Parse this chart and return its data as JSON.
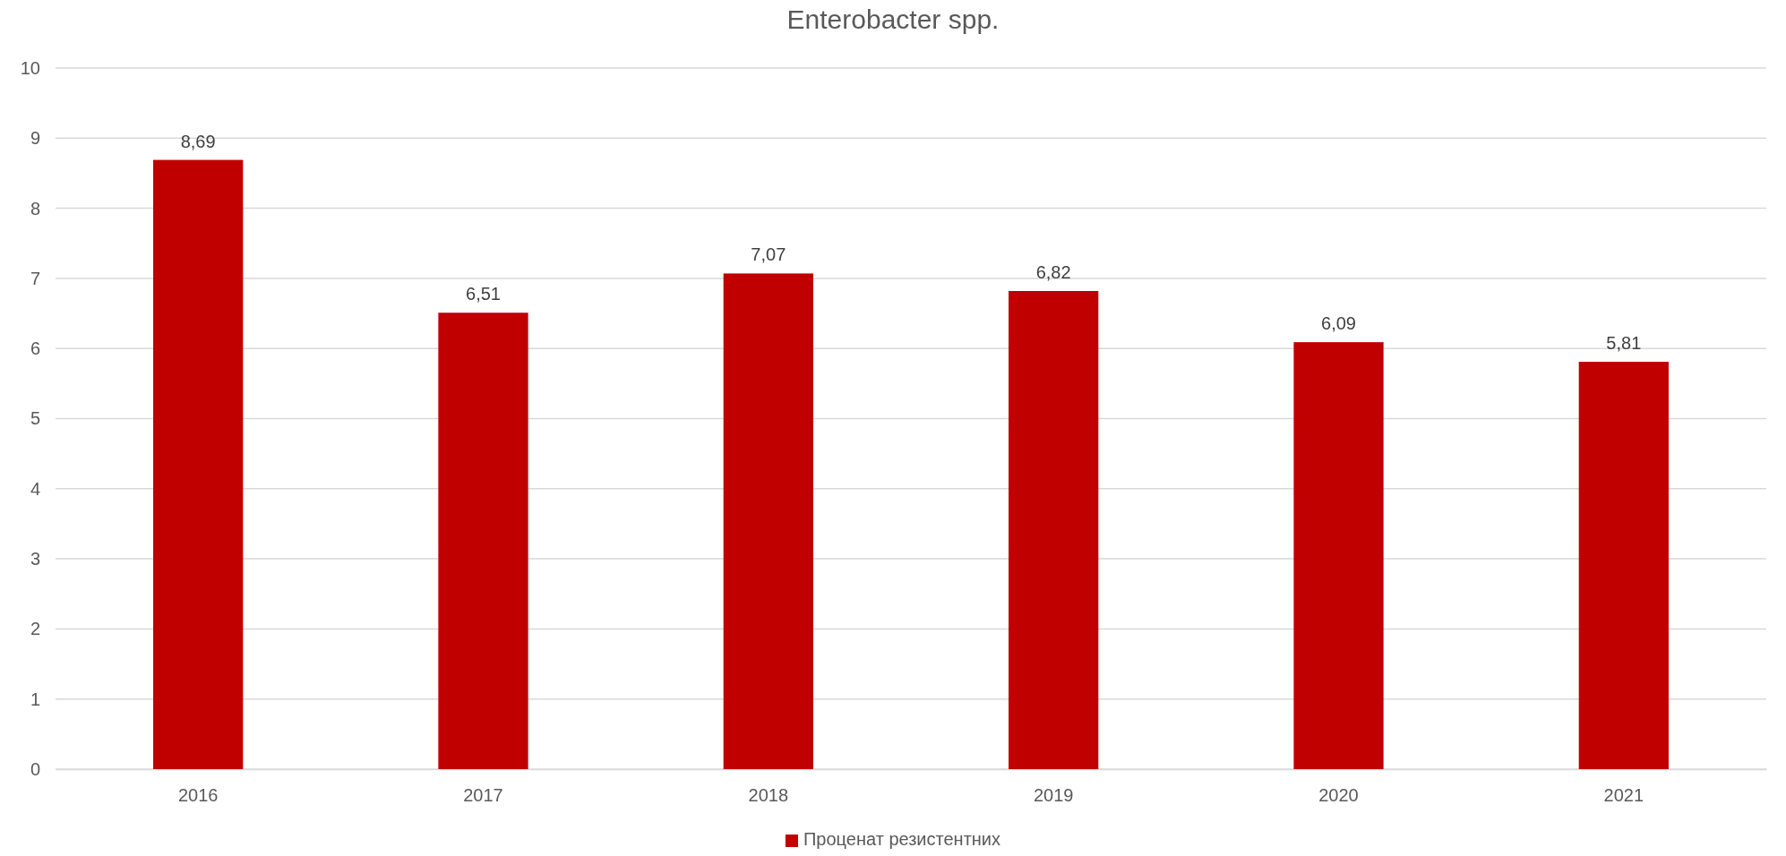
{
  "chart_data": {
    "type": "bar",
    "title": "Enterobacter spp.",
    "categories": [
      "2016",
      "2017",
      "2018",
      "2019",
      "2020",
      "2021"
    ],
    "series": [
      {
        "name": "Проценат резистентних",
        "color": "#c00000",
        "values": [
          8.69,
          6.51,
          7.07,
          6.82,
          6.09,
          5.81
        ],
        "value_labels": [
          "8,69",
          "6,51",
          "7,07",
          "6,82",
          "6,09",
          "5,81"
        ]
      }
    ],
    "ylim": [
      0,
      10
    ],
    "yticks": [
      0,
      1,
      2,
      3,
      4,
      5,
      6,
      7,
      8,
      9,
      10
    ],
    "grid": "y",
    "legend": "bottom"
  }
}
